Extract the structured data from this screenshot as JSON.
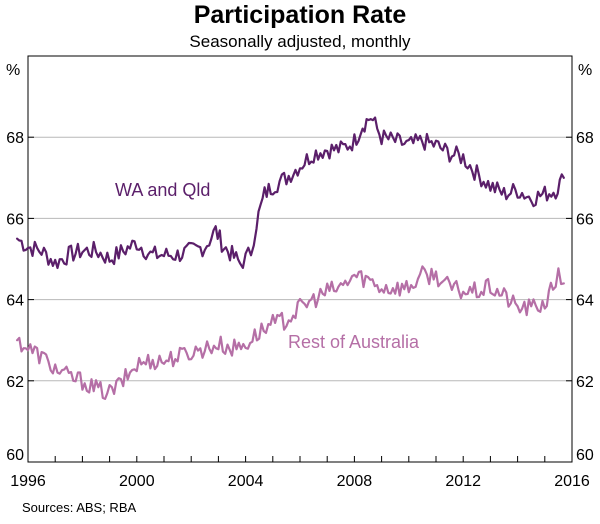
{
  "chart_data": {
    "type": "line",
    "title": "Participation Rate",
    "subtitle": "Seasonally adjusted, monthly",
    "ylabel_left": "%",
    "ylabel_right": "%",
    "xlim": [
      1996,
      2016
    ],
    "ylim": [
      60,
      70
    ],
    "x_ticks": [
      1996,
      2000,
      2004,
      2008,
      2012,
      2016
    ],
    "x_tick_labels": [
      "1996",
      "2000",
      "2004",
      "2008",
      "2012",
      "2016"
    ],
    "y_ticks": [
      60,
      62,
      64,
      66,
      68
    ],
    "y_tick_labels": [
      "60",
      "62",
      "64",
      "66",
      "68"
    ],
    "grid": "horizontal",
    "series": [
      {
        "name": "WA and Qld",
        "color": "#5b1f6a",
        "points": [
          [
            1995.6,
            65.5
          ],
          [
            1996.0,
            65.3
          ],
          [
            1996.5,
            65.2
          ],
          [
            1997.0,
            64.9
          ],
          [
            1997.5,
            65.1
          ],
          [
            1998.0,
            65.2
          ],
          [
            1998.5,
            65.2
          ],
          [
            1999.0,
            65.0
          ],
          [
            1999.5,
            65.2
          ],
          [
            2000.0,
            65.4
          ],
          [
            2000.5,
            65.1
          ],
          [
            2001.0,
            65.1
          ],
          [
            2001.5,
            65.1
          ],
          [
            2002.0,
            65.2
          ],
          [
            2002.5,
            65.3
          ],
          [
            2002.9,
            65.7
          ],
          [
            2003.2,
            65.3
          ],
          [
            2003.5,
            65.1
          ],
          [
            2003.8,
            64.9
          ],
          [
            2004.0,
            65.0
          ],
          [
            2004.2,
            65.2
          ],
          [
            2004.4,
            65.9
          ],
          [
            2004.7,
            66.6
          ],
          [
            2005.0,
            66.8
          ],
          [
            2005.5,
            67.0
          ],
          [
            2006.0,
            67.3
          ],
          [
            2006.5,
            67.6
          ],
          [
            2007.0,
            67.7
          ],
          [
            2007.5,
            67.7
          ],
          [
            2008.0,
            67.9
          ],
          [
            2008.3,
            68.3
          ],
          [
            2008.6,
            68.5
          ],
          [
            2009.0,
            68.0
          ],
          [
            2009.5,
            67.9
          ],
          [
            2010.0,
            67.8
          ],
          [
            2010.5,
            67.9
          ],
          [
            2011.0,
            67.8
          ],
          [
            2011.5,
            67.6
          ],
          [
            2012.0,
            67.5
          ],
          [
            2012.5,
            67.1
          ],
          [
            2013.0,
            66.8
          ],
          [
            2013.5,
            66.6
          ],
          [
            2014.0,
            66.7
          ],
          [
            2014.5,
            66.5
          ],
          [
            2015.0,
            66.6
          ],
          [
            2015.4,
            66.7
          ],
          [
            2015.7,
            67.0
          ]
        ]
      },
      {
        "name": "Rest of Australia",
        "color": "#b56fa6",
        "points": [
          [
            1995.6,
            63.0
          ],
          [
            1996.0,
            62.8
          ],
          [
            1996.5,
            62.6
          ],
          [
            1997.0,
            62.3
          ],
          [
            1997.5,
            62.1
          ],
          [
            1998.0,
            62.0
          ],
          [
            1998.5,
            61.8
          ],
          [
            1999.0,
            61.7
          ],
          [
            1999.5,
            62.0
          ],
          [
            2000.0,
            62.4
          ],
          [
            2000.5,
            62.5
          ],
          [
            2001.0,
            62.5
          ],
          [
            2001.5,
            62.6
          ],
          [
            2002.0,
            62.7
          ],
          [
            2002.5,
            62.8
          ],
          [
            2003.0,
            62.9
          ],
          [
            2003.5,
            62.8
          ],
          [
            2004.0,
            62.9
          ],
          [
            2004.5,
            63.2
          ],
          [
            2005.0,
            63.4
          ],
          [
            2005.5,
            63.5
          ],
          [
            2006.0,
            63.8
          ],
          [
            2006.5,
            64.0
          ],
          [
            2007.0,
            64.2
          ],
          [
            2007.5,
            64.3
          ],
          [
            2008.0,
            64.6
          ],
          [
            2008.5,
            64.5
          ],
          [
            2009.0,
            64.3
          ],
          [
            2009.5,
            64.3
          ],
          [
            2010.0,
            64.3
          ],
          [
            2010.5,
            64.6
          ],
          [
            2011.0,
            64.6
          ],
          [
            2011.5,
            64.3
          ],
          [
            2012.0,
            64.2
          ],
          [
            2012.5,
            64.2
          ],
          [
            2013.0,
            64.3
          ],
          [
            2013.5,
            64.1
          ],
          [
            2014.0,
            63.8
          ],
          [
            2014.5,
            63.8
          ],
          [
            2015.0,
            63.9
          ],
          [
            2015.3,
            64.3
          ],
          [
            2015.5,
            64.6
          ],
          [
            2015.7,
            64.4
          ]
        ]
      }
    ]
  },
  "sources_text": "Sources:  ABS; RBA"
}
